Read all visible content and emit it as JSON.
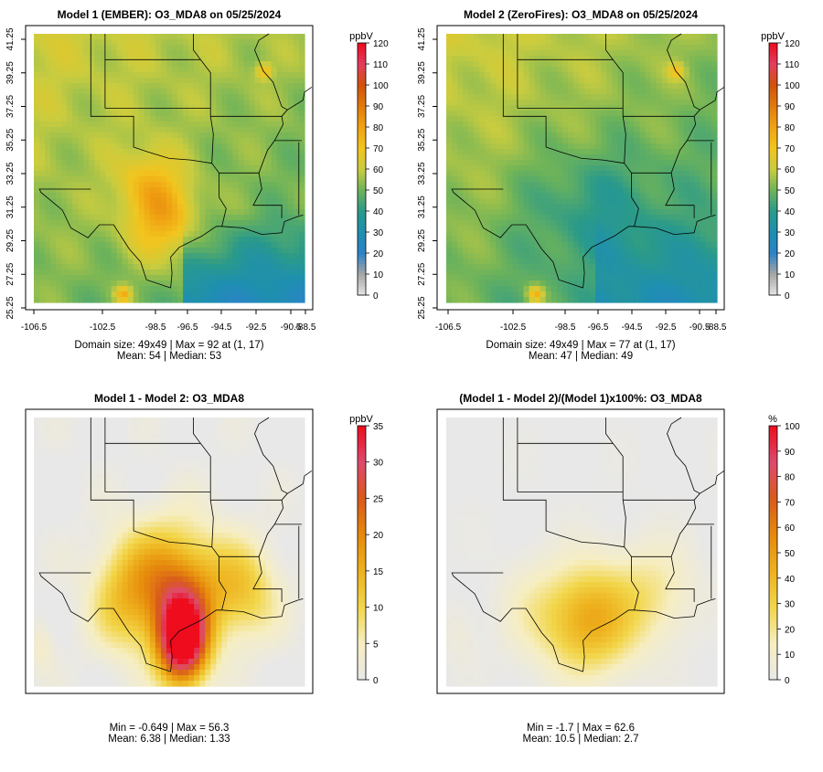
{
  "chart_data": [
    {
      "type": "heatmap",
      "title": "Model 1 (EMBER): O3_MDA8 on 05/25/2024",
      "xticks": [
        "-106.5",
        "-102.5",
        "-98.5",
        "-96.5",
        "-94.5",
        "-92.5",
        "-90.5",
        "-88.5"
      ],
      "yticks": [
        "25.25",
        "27.25",
        "29.25",
        "31.25",
        "33.25",
        "35.25",
        "37.25",
        "39.25",
        "41.25"
      ],
      "colorbar": {
        "label": "ppbV",
        "ticks": [
          "0",
          "10",
          "20",
          "30",
          "40",
          "50",
          "60",
          "70",
          "80",
          "90",
          "100",
          "110",
          "120"
        ],
        "range": [
          0,
          120
        ]
      },
      "palette": [
        "#e6e6e6",
        "#a6a6a6",
        "#2b83c8",
        "#1e8fb0",
        "#2a9a8a",
        "#6db35a",
        "#c9cc3f",
        "#f2c51e",
        "#f0a313",
        "#e37b0c",
        "#d1530a",
        "#e33d5e",
        "#ee0c1d"
      ],
      "stats": [
        "Domain size: 49x49 | Max = 92 at (1, 17)",
        "Mean: 54 |  Median: 53"
      ]
    },
    {
      "type": "heatmap",
      "title": "Model 2 (ZeroFires): O3_MDA8 on 05/25/2024",
      "xticks": [
        "-106.5",
        "-102.5",
        "-98.5",
        "-96.5",
        "-94.5",
        "-92.5",
        "-90.5",
        "-88.5"
      ],
      "yticks": [
        "25.25",
        "27.25",
        "29.25",
        "31.25",
        "33.25",
        "35.25",
        "37.25",
        "39.25",
        "41.25"
      ],
      "colorbar": {
        "label": "ppbV",
        "ticks": [
          "0",
          "10",
          "20",
          "30",
          "40",
          "50",
          "60",
          "70",
          "80",
          "90",
          "100",
          "110",
          "120"
        ],
        "range": [
          0,
          120
        ]
      },
      "palette": [
        "#e6e6e6",
        "#a6a6a6",
        "#2b83c8",
        "#1e8fb0",
        "#2a9a8a",
        "#6db35a",
        "#c9cc3f",
        "#f2c51e",
        "#f0a313",
        "#e37b0c",
        "#d1530a",
        "#e33d5e",
        "#ee0c1d"
      ],
      "stats": [
        "Domain size: 49x49 | Max = 77 at (1, 17)",
        "Mean: 47 |  Median: 49"
      ]
    },
    {
      "type": "heatmap",
      "title": "Model 1 - Model 2: O3_MDA8",
      "xticks": [],
      "yticks": [],
      "colorbar": {
        "label": "ppbV",
        "ticks": [
          "0",
          "5",
          "10",
          "15",
          "20",
          "25",
          "30",
          "35"
        ],
        "range": [
          0,
          35
        ]
      },
      "palette": [
        "#e8e8e8",
        "#f6eec2",
        "#f2d64a",
        "#eeb21e",
        "#e68a0c",
        "#d95a1b",
        "#dd4a6e",
        "#ee0c1d"
      ],
      "stats": [
        "Min = -0.649 | Max = 56.3",
        "Mean: 6.38 |  Median: 1.33"
      ]
    },
    {
      "type": "heatmap",
      "title": "(Model 1 - Model 2)/(Model 1)x100%: O3_MDA8",
      "xticks": [],
      "yticks": [],
      "colorbar": {
        "label": "%",
        "ticks": [
          "0",
          "10",
          "20",
          "30",
          "40",
          "50",
          "60",
          "70",
          "80",
          "90",
          "100"
        ],
        "range": [
          0,
          100
        ]
      },
      "palette": [
        "#e8e8e8",
        "#f6eec2",
        "#f2d64a",
        "#eeb21e",
        "#e68a0c",
        "#d95a1b",
        "#dd4a6e",
        "#ee0c1d"
      ],
      "stats": [
        "Min = -1.7 | Max = 62.6",
        "Mean: 10.5 |  Median: 2.7"
      ]
    }
  ]
}
